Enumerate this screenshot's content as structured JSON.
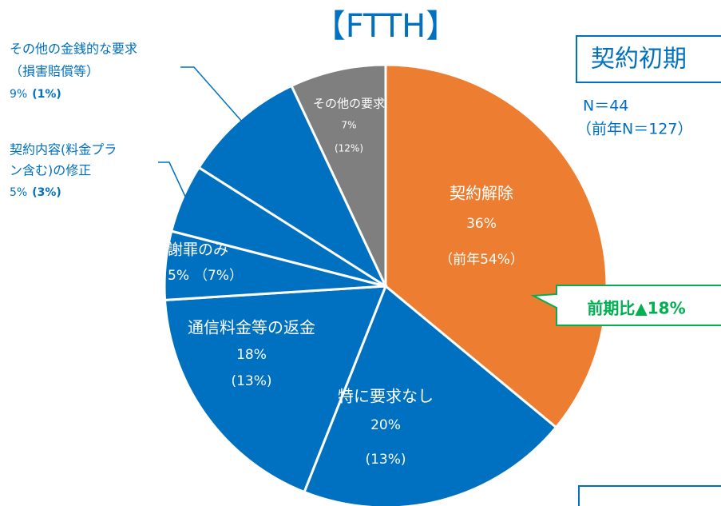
{
  "chart_data": {
    "type": "pie",
    "title": "【FTTH】",
    "categories": [
      [
        "契約解除"
      ],
      [
        "特に要求なし"
      ],
      [
        "通信料金等の返金"
      ],
      [
        "謝罪のみ"
      ],
      [
        "契約内容(料金プラ",
        "ン含む)の修正"
      ],
      [
        "その他の金銭的な要求",
        "（損害賠償等）"
      ],
      [
        "その他の要求"
      ]
    ],
    "values": [
      36,
      20,
      18,
      5,
      5,
      9,
      7
    ],
    "value_labels": [
      "36%",
      "20%",
      "18%",
      "5%",
      "5%",
      "9%",
      "7%"
    ],
    "prev_labels": [
      "（前年54%）",
      "(13%)",
      "(13%)",
      "（7%）",
      "(3%)",
      "(1%)",
      "(12%)"
    ],
    "colors": [
      "#ed7d31",
      "#0070c0",
      "#0070c0",
      "#0070c0",
      "#0070c0",
      "#0070c0",
      "#7f7f7f"
    ],
    "panel_title": "契約初期",
    "n_label": "N＝44",
    "prev_n_label": "（前年N＝127）",
    "callout": "前期比▲18%"
  }
}
